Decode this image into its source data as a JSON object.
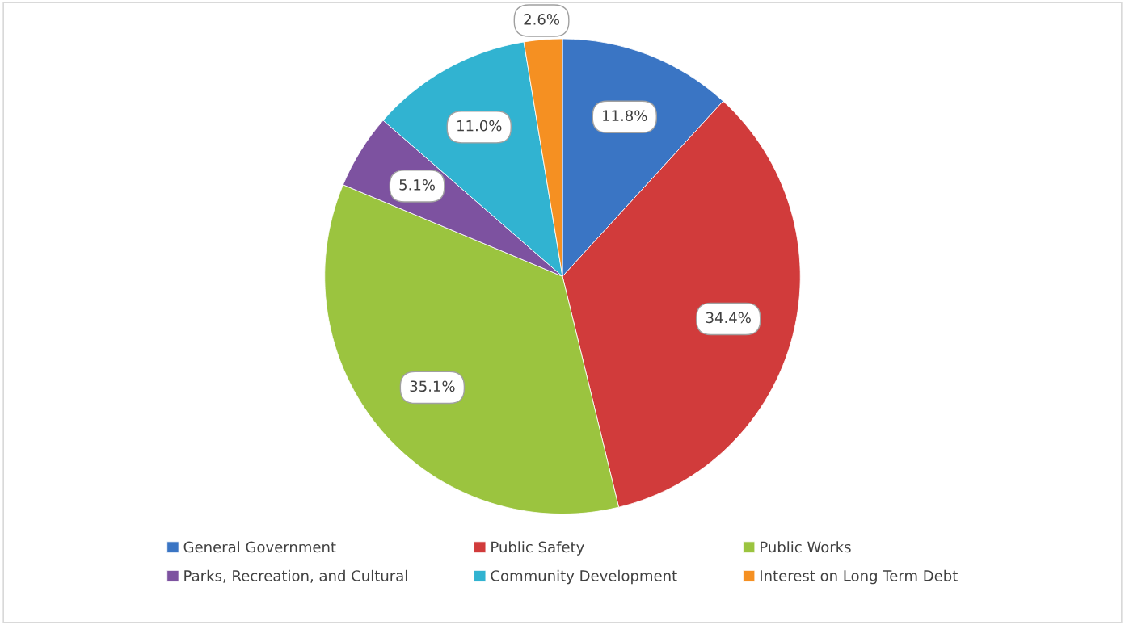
{
  "chart_data": {
    "type": "pie",
    "categories": [
      "General Government",
      "Public Safety",
      "Public Works",
      "Parks, Recreation, and Cultural",
      "Community Development",
      "Interest on Long Term Debt"
    ],
    "values": [
      11.8,
      34.4,
      35.1,
      5.1,
      11.0,
      2.6
    ],
    "value_labels": [
      "11.8%",
      "34.4%",
      "35.1%",
      "5.1%",
      "11.0%",
      "2.6%"
    ],
    "colors": [
      "#3a75c4",
      "#d13b3b",
      "#9bc43f",
      "#7d52a0",
      "#31b3d1",
      "#f59022"
    ],
    "legend": "bottom"
  }
}
